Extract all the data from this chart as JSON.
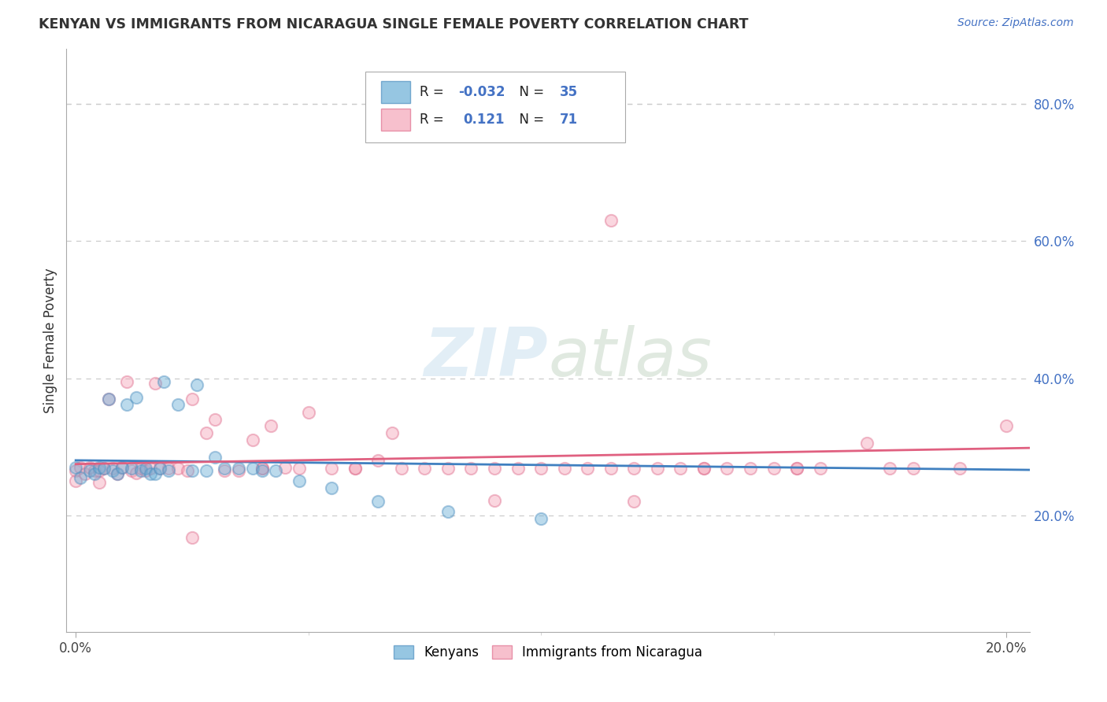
{
  "title": "KENYAN VS IMMIGRANTS FROM NICARAGUA SINGLE FEMALE POVERTY CORRELATION CHART",
  "source": "Source: ZipAtlas.com",
  "ylabel": "Single Female Poverty",
  "right_yticks": [
    "20.0%",
    "40.0%",
    "60.0%",
    "80.0%"
  ],
  "right_ytick_vals": [
    0.2,
    0.4,
    0.6,
    0.8
  ],
  "xlim": [
    -0.002,
    0.205
  ],
  "ylim": [
    0.03,
    0.88
  ],
  "legend_labels": [
    "Kenyans",
    "Immigrants from Nicaragua"
  ],
  "kenyan_color": "#6aaed6",
  "nicaragua_color": "#f4a6b8",
  "kenyan_edge_color": "#5090c0",
  "nicaragua_edge_color": "#e07090",
  "kenyan_R": -0.032,
  "kenyan_N": 35,
  "nicaragua_R": 0.121,
  "nicaragua_N": 71,
  "background_color": "#ffffff",
  "grid_color": "#cccccc",
  "dot_size": 120,
  "dot_alpha": 0.45,
  "dot_linewidth": 1.5,
  "kenyan_x": [
    0.0,
    0.001,
    0.003,
    0.004,
    0.005,
    0.006,
    0.007,
    0.008,
    0.009,
    0.01,
    0.011,
    0.012,
    0.013,
    0.014,
    0.015,
    0.016,
    0.017,
    0.018,
    0.019,
    0.02,
    0.022,
    0.025,
    0.026,
    0.028,
    0.03,
    0.032,
    0.035,
    0.038,
    0.04,
    0.043,
    0.048,
    0.055,
    0.065,
    0.08,
    0.1
  ],
  "kenyan_y": [
    0.27,
    0.255,
    0.265,
    0.26,
    0.27,
    0.268,
    0.37,
    0.265,
    0.26,
    0.27,
    0.362,
    0.268,
    0.372,
    0.265,
    0.268,
    0.26,
    0.26,
    0.268,
    0.395,
    0.265,
    0.362,
    0.265,
    0.39,
    0.265,
    0.285,
    0.268,
    0.268,
    0.268,
    0.265,
    0.265,
    0.25,
    0.24,
    0.22,
    0.205,
    0.195
  ],
  "nicaragua_x": [
    0.0,
    0.0,
    0.001,
    0.002,
    0.003,
    0.004,
    0.005,
    0.005,
    0.006,
    0.007,
    0.008,
    0.009,
    0.01,
    0.011,
    0.012,
    0.013,
    0.014,
    0.015,
    0.016,
    0.017,
    0.018,
    0.02,
    0.022,
    0.024,
    0.025,
    0.028,
    0.03,
    0.032,
    0.035,
    0.038,
    0.04,
    0.042,
    0.045,
    0.048,
    0.05,
    0.055,
    0.06,
    0.065,
    0.068,
    0.07,
    0.075,
    0.08,
    0.085,
    0.09,
    0.095,
    0.1,
    0.105,
    0.11,
    0.115,
    0.12,
    0.125,
    0.13,
    0.135,
    0.14,
    0.145,
    0.15,
    0.155,
    0.16,
    0.17,
    0.18,
    0.19,
    0.2,
    0.115,
    0.135,
    0.155,
    0.175,
    0.12,
    0.09,
    0.06,
    0.04,
    0.025
  ],
  "nicaragua_y": [
    0.265,
    0.25,
    0.27,
    0.26,
    0.27,
    0.265,
    0.265,
    0.248,
    0.268,
    0.37,
    0.268,
    0.26,
    0.27,
    0.395,
    0.265,
    0.262,
    0.268,
    0.265,
    0.268,
    0.392,
    0.268,
    0.268,
    0.268,
    0.265,
    0.37,
    0.32,
    0.34,
    0.265,
    0.265,
    0.31,
    0.268,
    0.33,
    0.27,
    0.268,
    0.35,
    0.268,
    0.268,
    0.28,
    0.32,
    0.268,
    0.268,
    0.268,
    0.268,
    0.222,
    0.268,
    0.268,
    0.268,
    0.268,
    0.268,
    0.268,
    0.268,
    0.268,
    0.268,
    0.268,
    0.268,
    0.268,
    0.268,
    0.268,
    0.305,
    0.268,
    0.268,
    0.33,
    0.63,
    0.268,
    0.268,
    0.268,
    0.22,
    0.268,
    0.268,
    0.268,
    0.168
  ]
}
